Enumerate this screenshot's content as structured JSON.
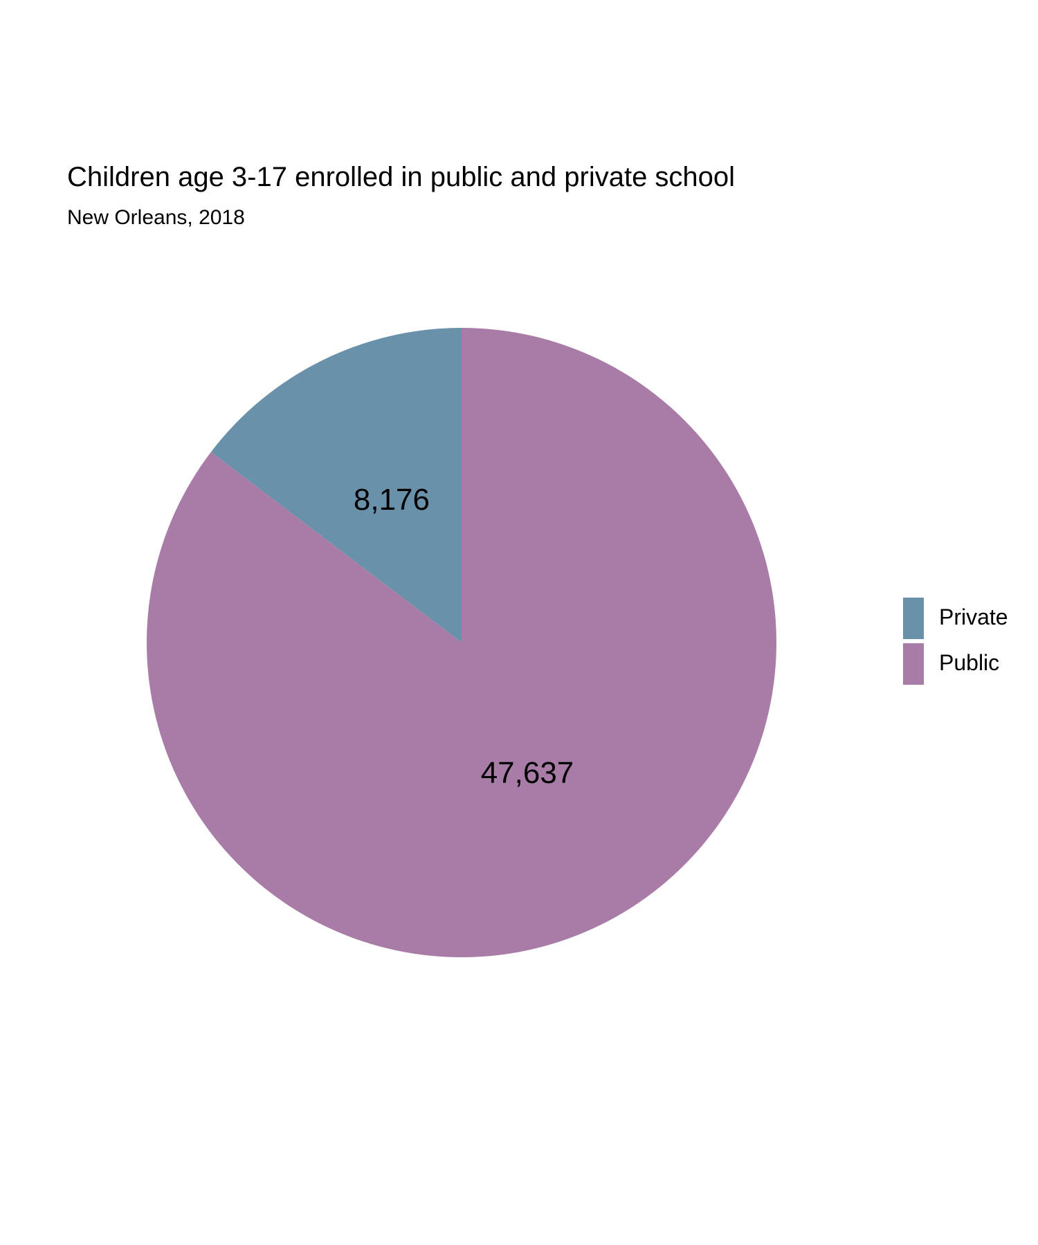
{
  "chart_data": {
    "type": "pie",
    "title": "Children age 3-17 enrolled in public and private school",
    "subtitle": "New Orleans, 2018",
    "slices": [
      {
        "label": "Private",
        "value": 8176,
        "display": "8,176",
        "color": "#6a91aa"
      },
      {
        "label": "Public",
        "value": 47637,
        "display": "47,637",
        "color": "#a87ca7"
      }
    ],
    "legend_position": "right",
    "start": "top, clockwise"
  }
}
